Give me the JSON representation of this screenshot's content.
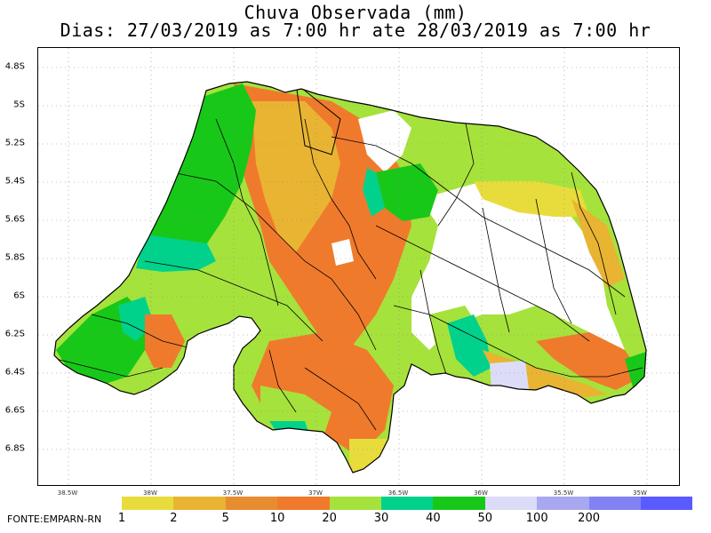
{
  "title": "Chuva Observada (mm)",
  "subtitle": "Dias: 27/03/2019 as 7:00 hr ate 28/03/2019 as 7:00 hr",
  "y_axis_labels": [
    "4.8S",
    "5S",
    "5.2S",
    "5.4S",
    "5.6S",
    "5.8S",
    "6S",
    "6.2S",
    "6.4S",
    "6.6S",
    "6.8S"
  ],
  "x_axis_labels": [
    "38.5W",
    "38W",
    "37.5W",
    "37W",
    "36.5W",
    "36W",
    "35.5W",
    "35W"
  ],
  "legend": {
    "breaks": [
      "1",
      "2",
      "5",
      "10",
      "20",
      "30",
      "40",
      "50",
      "100",
      "200"
    ],
    "colors": [
      "#e8dc3c",
      "#e8b432",
      "#e88c30",
      "#f07a2c",
      "#a6e23c",
      "#00d28c",
      "#18c818",
      "#dcdcf8",
      "#a8a8f0",
      "#8282f4",
      "#5a5aff"
    ]
  },
  "source": "FONTE:EMPARN-RN",
  "map": {
    "region_colors": {
      "outside": "#ffffff",
      "dry": "#ffffff",
      "light_yellow": "#e8dc3c",
      "yellow_orange": "#e8b432",
      "orange": "#f07a2c",
      "light_green": "#a6e23c",
      "teal": "#00d28c",
      "green": "#18c818",
      "lavender": "#dcdcf8"
    }
  }
}
